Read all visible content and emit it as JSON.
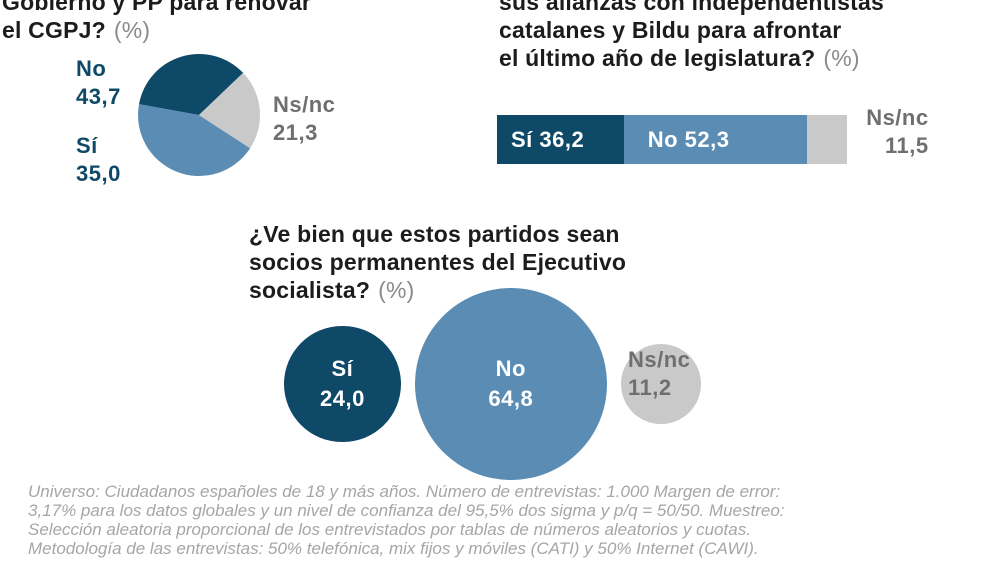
{
  "colors": {
    "si": "#0f4968",
    "no": "#5b8db4",
    "nsnc": "#c9c9c9"
  },
  "q1": {
    "title_lines": [
      "Gobierno y PP para renovar",
      "el CGPJ?"
    ],
    "unit": "(%)",
    "no_label": "No",
    "no_value": "43,7",
    "si_label": "Sí",
    "si_value": "35,0",
    "nsnc_label": "Ns/nc",
    "nsnc_value": "21,3"
  },
  "q2": {
    "title_lines": [
      "sus alianzas con independentistas",
      "catalanes y Bildu para afrontar",
      "el último año de legislatura?"
    ],
    "unit": "(%)",
    "si_text": "Sí 36,2",
    "no_text": "No 52,3",
    "nsnc_label": "Ns/nc",
    "nsnc_value": "11,5"
  },
  "q3": {
    "title_lines": [
      "¿Ve bien que estos partidos sean",
      "socios permanentes del Ejecutivo",
      "socialista?"
    ],
    "unit": "(%)",
    "si_label": "Sí",
    "si_value": "24,0",
    "no_label": "No",
    "no_value": "64,8",
    "nsnc_label": "Ns/nc",
    "nsnc_value": "11,2"
  },
  "note_lines": [
    "Universo: Ciudadanos españoles de 18 y más años. Número de entrevistas: 1.000 Margen de error:",
    "3,17% para los datos globales y un nivel de confianza del 95,5% dos sigma y p/q = 50/50. Muestreo:",
    "Selección aleatoria proporcional de los entrevistados por tablas de números aleatorios y cuotas.",
    "Metodología de las entrevistas: 50% telefónica, mix fijos y móviles (CATI) y 50% Internet (CAWI)."
  ],
  "chart_data": [
    {
      "type": "pie",
      "title": "Gobierno y PP para renovar el CGPJ?",
      "unit": "(%)",
      "categories": [
        "No",
        "Sí",
        "Ns/nc"
      ],
      "values": [
        43.7,
        35.0,
        21.3
      ],
      "colors": [
        "#5b8db4",
        "#0f4968",
        "#c9c9c9"
      ]
    },
    {
      "type": "bar",
      "orientation": "horizontal-stacked",
      "title": "sus alianzas con independentistas catalanes y Bildu para afrontar el último año de legislatura?",
      "unit": "(%)",
      "categories": [
        "Sí",
        "No",
        "Ns/nc"
      ],
      "values": [
        36.2,
        52.3,
        11.5
      ],
      "colors": [
        "#0f4968",
        "#5b8db4",
        "#c9c9c9"
      ]
    },
    {
      "type": "scatter",
      "encoding": "proportional-circles",
      "title": "¿Ve bien que estos partidos sean socios permanentes del Ejecutivo socialista?",
      "unit": "(%)",
      "categories": [
        "Sí",
        "No",
        "Ns/nc"
      ],
      "values": [
        24.0,
        64.8,
        11.2
      ],
      "colors": [
        "#0f4968",
        "#5b8db4",
        "#c9c9c9"
      ]
    }
  ]
}
